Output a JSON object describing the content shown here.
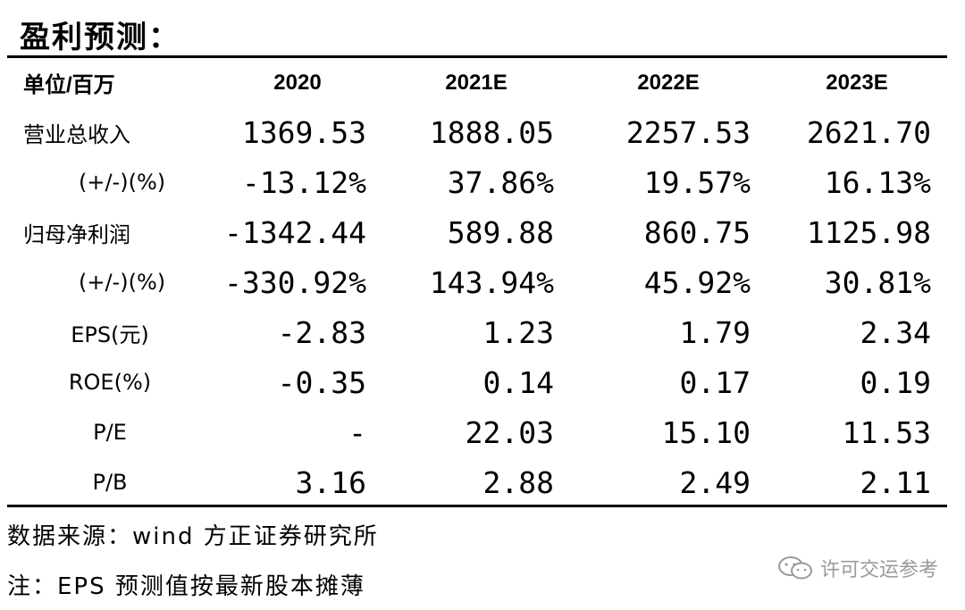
{
  "title": "盈利预测：",
  "table": {
    "unit_label": "单位/百万",
    "columns": [
      "2020",
      "2021E",
      "2022E",
      "2023E"
    ],
    "rows": [
      {
        "label": "营业总收入",
        "values": [
          "1369.53",
          "1888.05",
          "2257.53",
          "2621.70"
        ]
      },
      {
        "label": "(+/-)(%)",
        "values": [
          "-13.12%",
          "37.86%",
          "19.57%",
          "16.13%"
        ]
      },
      {
        "label": "归母净利润",
        "values": [
          "-1342.44",
          "589.88",
          "860.75",
          "1125.98"
        ]
      },
      {
        "label": "(+/-)(%)",
        "values": [
          "-330.92%",
          "143.94%",
          "45.92%",
          "30.81%"
        ]
      },
      {
        "label": "EPS(元)",
        "values": [
          "-2.83",
          "1.23",
          "1.79",
          "2.34"
        ]
      },
      {
        "label": "ROE(%)",
        "values": [
          "-0.35",
          "0.14",
          "0.17",
          "0.19"
        ]
      },
      {
        "label": "P/E",
        "values": [
          "-",
          "22.03",
          "15.10",
          "11.53"
        ]
      },
      {
        "label": "P/B",
        "values": [
          "3.16",
          "2.88",
          "2.49",
          "2.11"
        ]
      }
    ]
  },
  "source_note": "数据来源：wind 方正证券研究所",
  "footnote": "注：EPS 预测值按最新股本摊薄",
  "watermark": {
    "text": "许可交运参考",
    "icon": "wechat-icon"
  }
}
